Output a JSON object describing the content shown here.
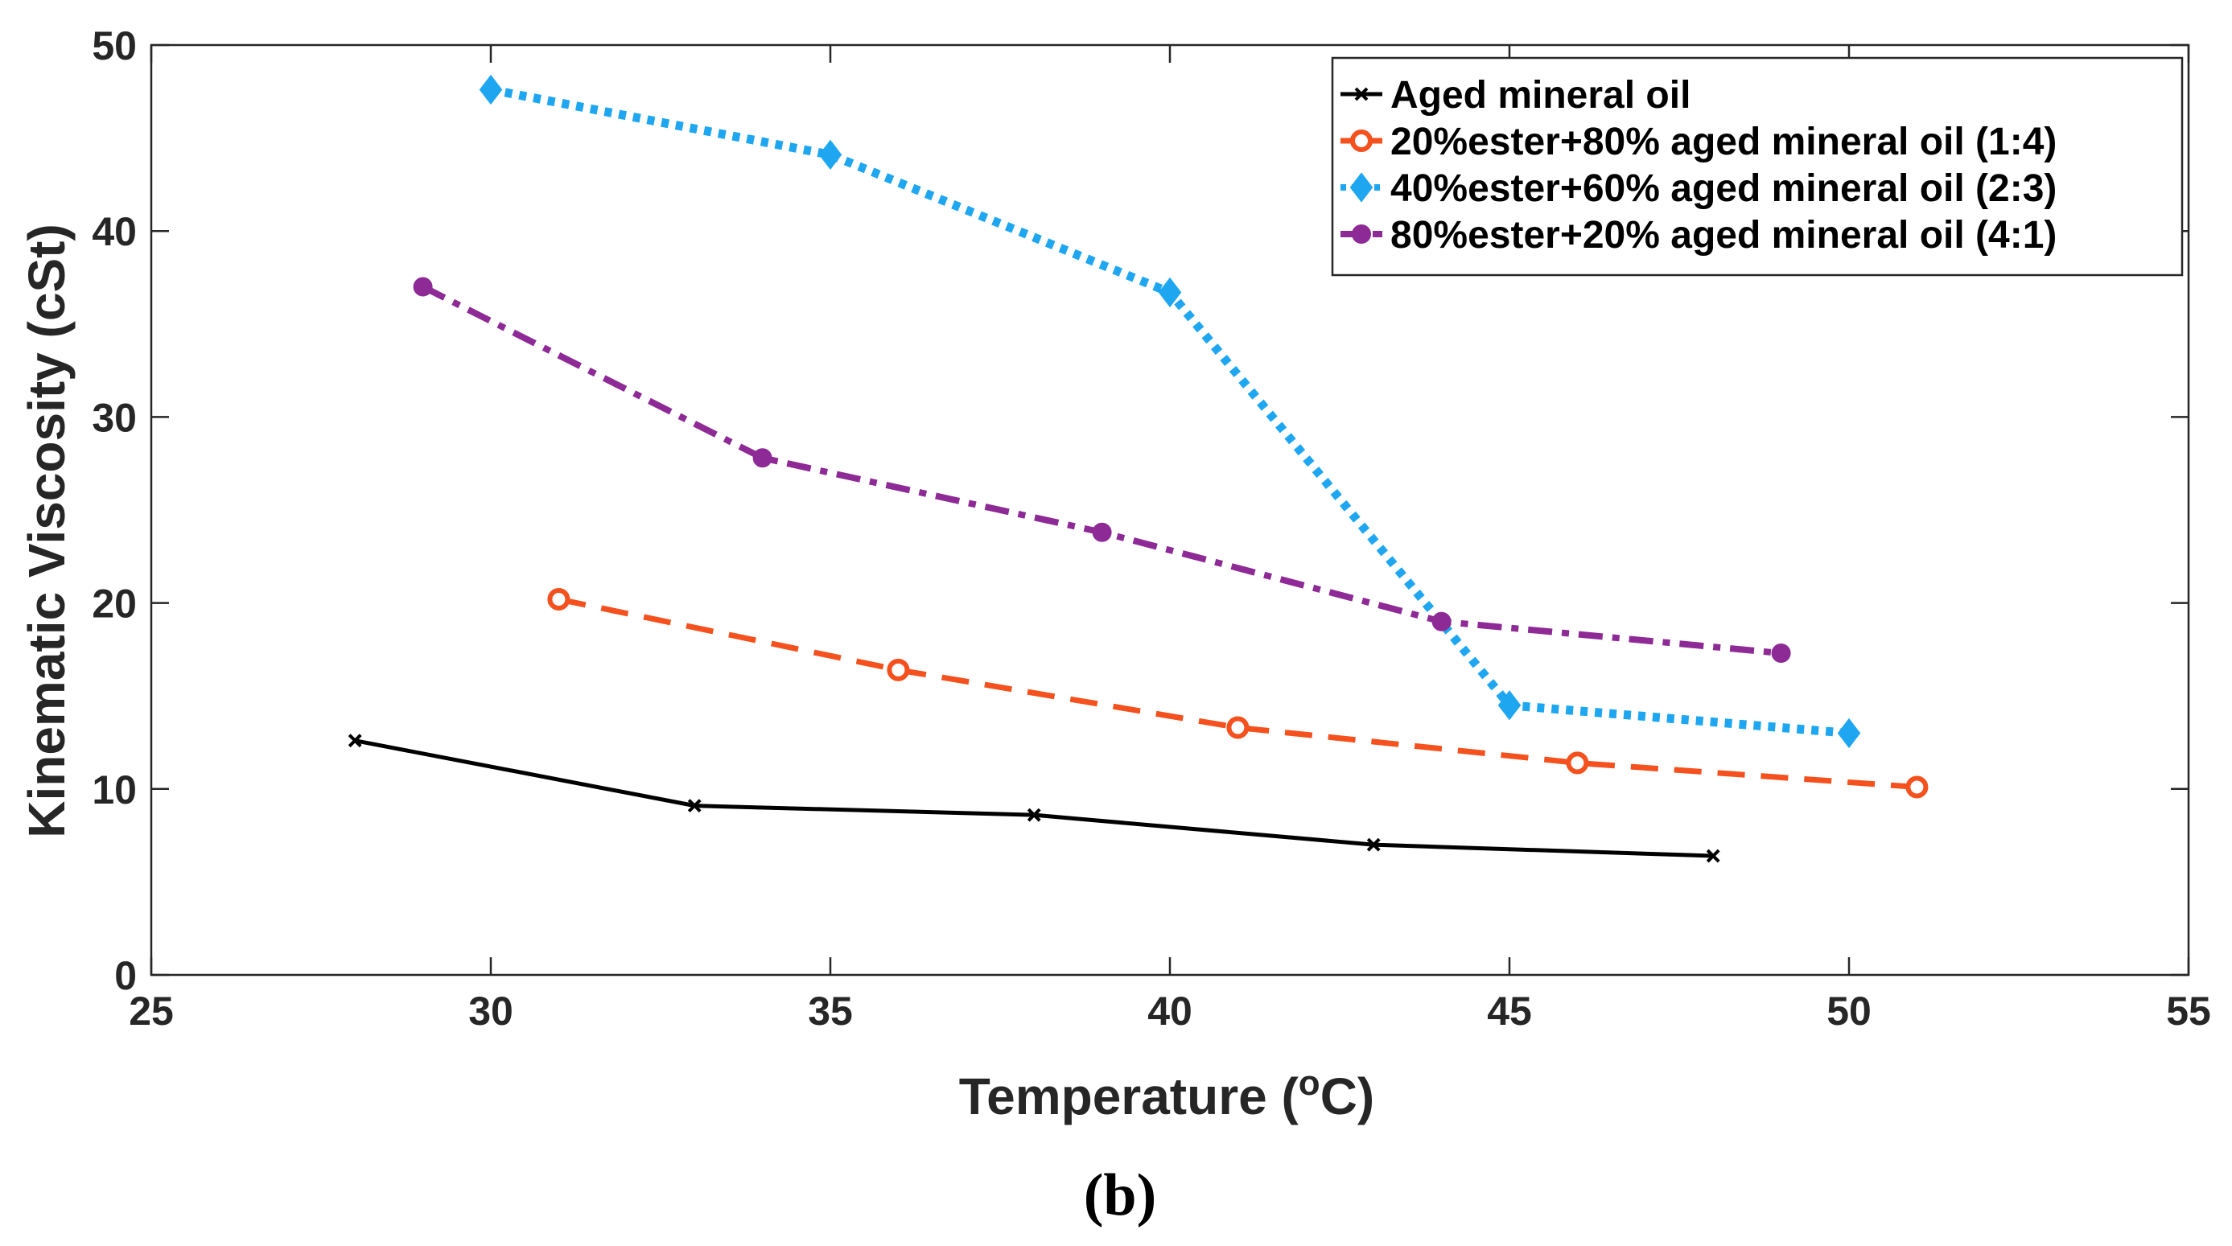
{
  "chart_data": {
    "type": "line",
    "title": "",
    "xlabel": "Temperature (",
    "xlabel_sup": "o",
    "xlabel_suffix": "C)",
    "ylabel": "Kinematic Viscosity (cSt)",
    "caption": "(b)",
    "xlim": [
      25,
      55
    ],
    "ylim": [
      0,
      50
    ],
    "xticks": [
      25,
      30,
      35,
      40,
      45,
      50,
      55
    ],
    "yticks": [
      0,
      10,
      20,
      30,
      40,
      50
    ],
    "grid": false,
    "legend_position": "top-right",
    "series": [
      {
        "name": "Aged mineral oil",
        "color": "#000000",
        "line_style": "solid",
        "marker": "x",
        "x": [
          28,
          33,
          38,
          43,
          48
        ],
        "y": [
          12.6,
          9.1,
          8.6,
          7.0,
          6.4
        ]
      },
      {
        "name": "20%ester+80% aged mineral oil (1:4)",
        "color": "#F4511E",
        "line_style": "dashed",
        "marker": "circle",
        "x": [
          31,
          36,
          41,
          46,
          51
        ],
        "y": [
          20.2,
          16.4,
          13.3,
          11.4,
          10.1
        ]
      },
      {
        "name": "40%ester+60% aged mineral oil (2:3)",
        "color": "#1EA7F0",
        "line_style": "dotted",
        "marker": "diamond",
        "x": [
          30,
          35,
          40,
          45,
          50
        ],
        "y": [
          47.6,
          44.1,
          36.7,
          14.5,
          13.0
        ]
      },
      {
        "name": "80%ester+20% aged mineral oil (4:1)",
        "color": "#8E2A96",
        "line_style": "dashdot",
        "marker": "circle-small",
        "x": [
          29,
          34,
          39,
          44,
          49
        ],
        "y": [
          37.0,
          27.8,
          23.8,
          19.0,
          17.3
        ]
      }
    ]
  }
}
